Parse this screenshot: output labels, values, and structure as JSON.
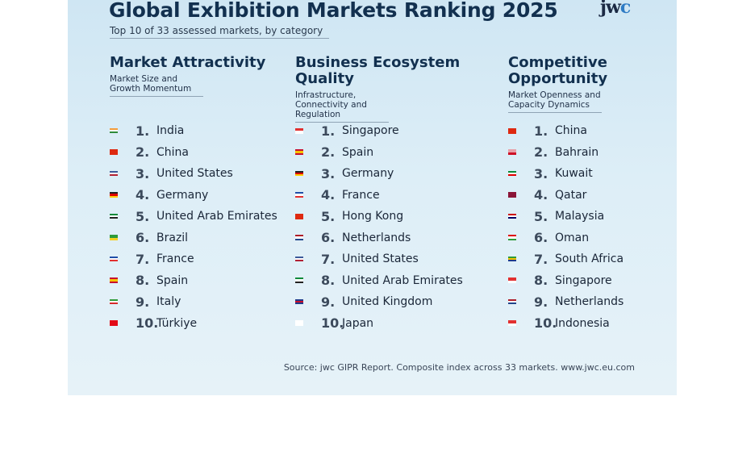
{
  "header": {
    "title": "Global Exhibition Markets Ranking 2025",
    "logo_prefix": "jw",
    "logo_suffix": "c",
    "subtitle": "Top 10 of 33 assessed markets, by category"
  },
  "columns": [
    {
      "heading": "Market Attractivity",
      "description": "Market Size and Growth Momentum",
      "items": [
        {
          "rank": "1.",
          "name": "India"
        },
        {
          "rank": "2.",
          "name": "China"
        },
        {
          "rank": "3.",
          "name": "United States"
        },
        {
          "rank": "4.",
          "name": "Germany"
        },
        {
          "rank": "5.",
          "name": "United Arab Emirates"
        },
        {
          "rank": "6.",
          "name": "Brazil"
        },
        {
          "rank": "7.",
          "name": "France"
        },
        {
          "rank": "8.",
          "name": "Spain"
        },
        {
          "rank": "9.",
          "name": "Italy"
        },
        {
          "rank": "10.",
          "name": "Türkiye"
        }
      ]
    },
    {
      "heading": "Business Ecosystem Quality",
      "description": "Infrastructure, Connectivity and Regulation",
      "items": [
        {
          "rank": "1.",
          "name": "Singapore"
        },
        {
          "rank": "2.",
          "name": "Spain"
        },
        {
          "rank": "3.",
          "name": "Germany"
        },
        {
          "rank": "4.",
          "name": "France"
        },
        {
          "rank": "5.",
          "name": "Hong Kong"
        },
        {
          "rank": "6.",
          "name": "Netherlands"
        },
        {
          "rank": "7.",
          "name": "United States"
        },
        {
          "rank": "8.",
          "name": "United Arab Emirates"
        },
        {
          "rank": "9.",
          "name": "United Kingdom"
        },
        {
          "rank": "10.",
          "name": "Japan"
        }
      ]
    },
    {
      "heading": "Competitive Opportunity",
      "description": "Market Openness and Capacity Dynamics",
      "items": [
        {
          "rank": "1.",
          "name": "China"
        },
        {
          "rank": "2.",
          "name": "Bahrain"
        },
        {
          "rank": "3.",
          "name": "Kuwait"
        },
        {
          "rank": "4.",
          "name": "Qatar"
        },
        {
          "rank": "5.",
          "name": "Malaysia"
        },
        {
          "rank": "6.",
          "name": "Oman"
        },
        {
          "rank": "7.",
          "name": "South Africa"
        },
        {
          "rank": "8.",
          "name": "Singapore"
        },
        {
          "rank": "9.",
          "name": "Netherlands"
        },
        {
          "rank": "10.",
          "name": "Indonesia"
        }
      ]
    }
  ],
  "footer": {
    "source": "Source: jwc GIPR Report. Composite index across 33 markets. www.jwc.eu.com"
  }
}
